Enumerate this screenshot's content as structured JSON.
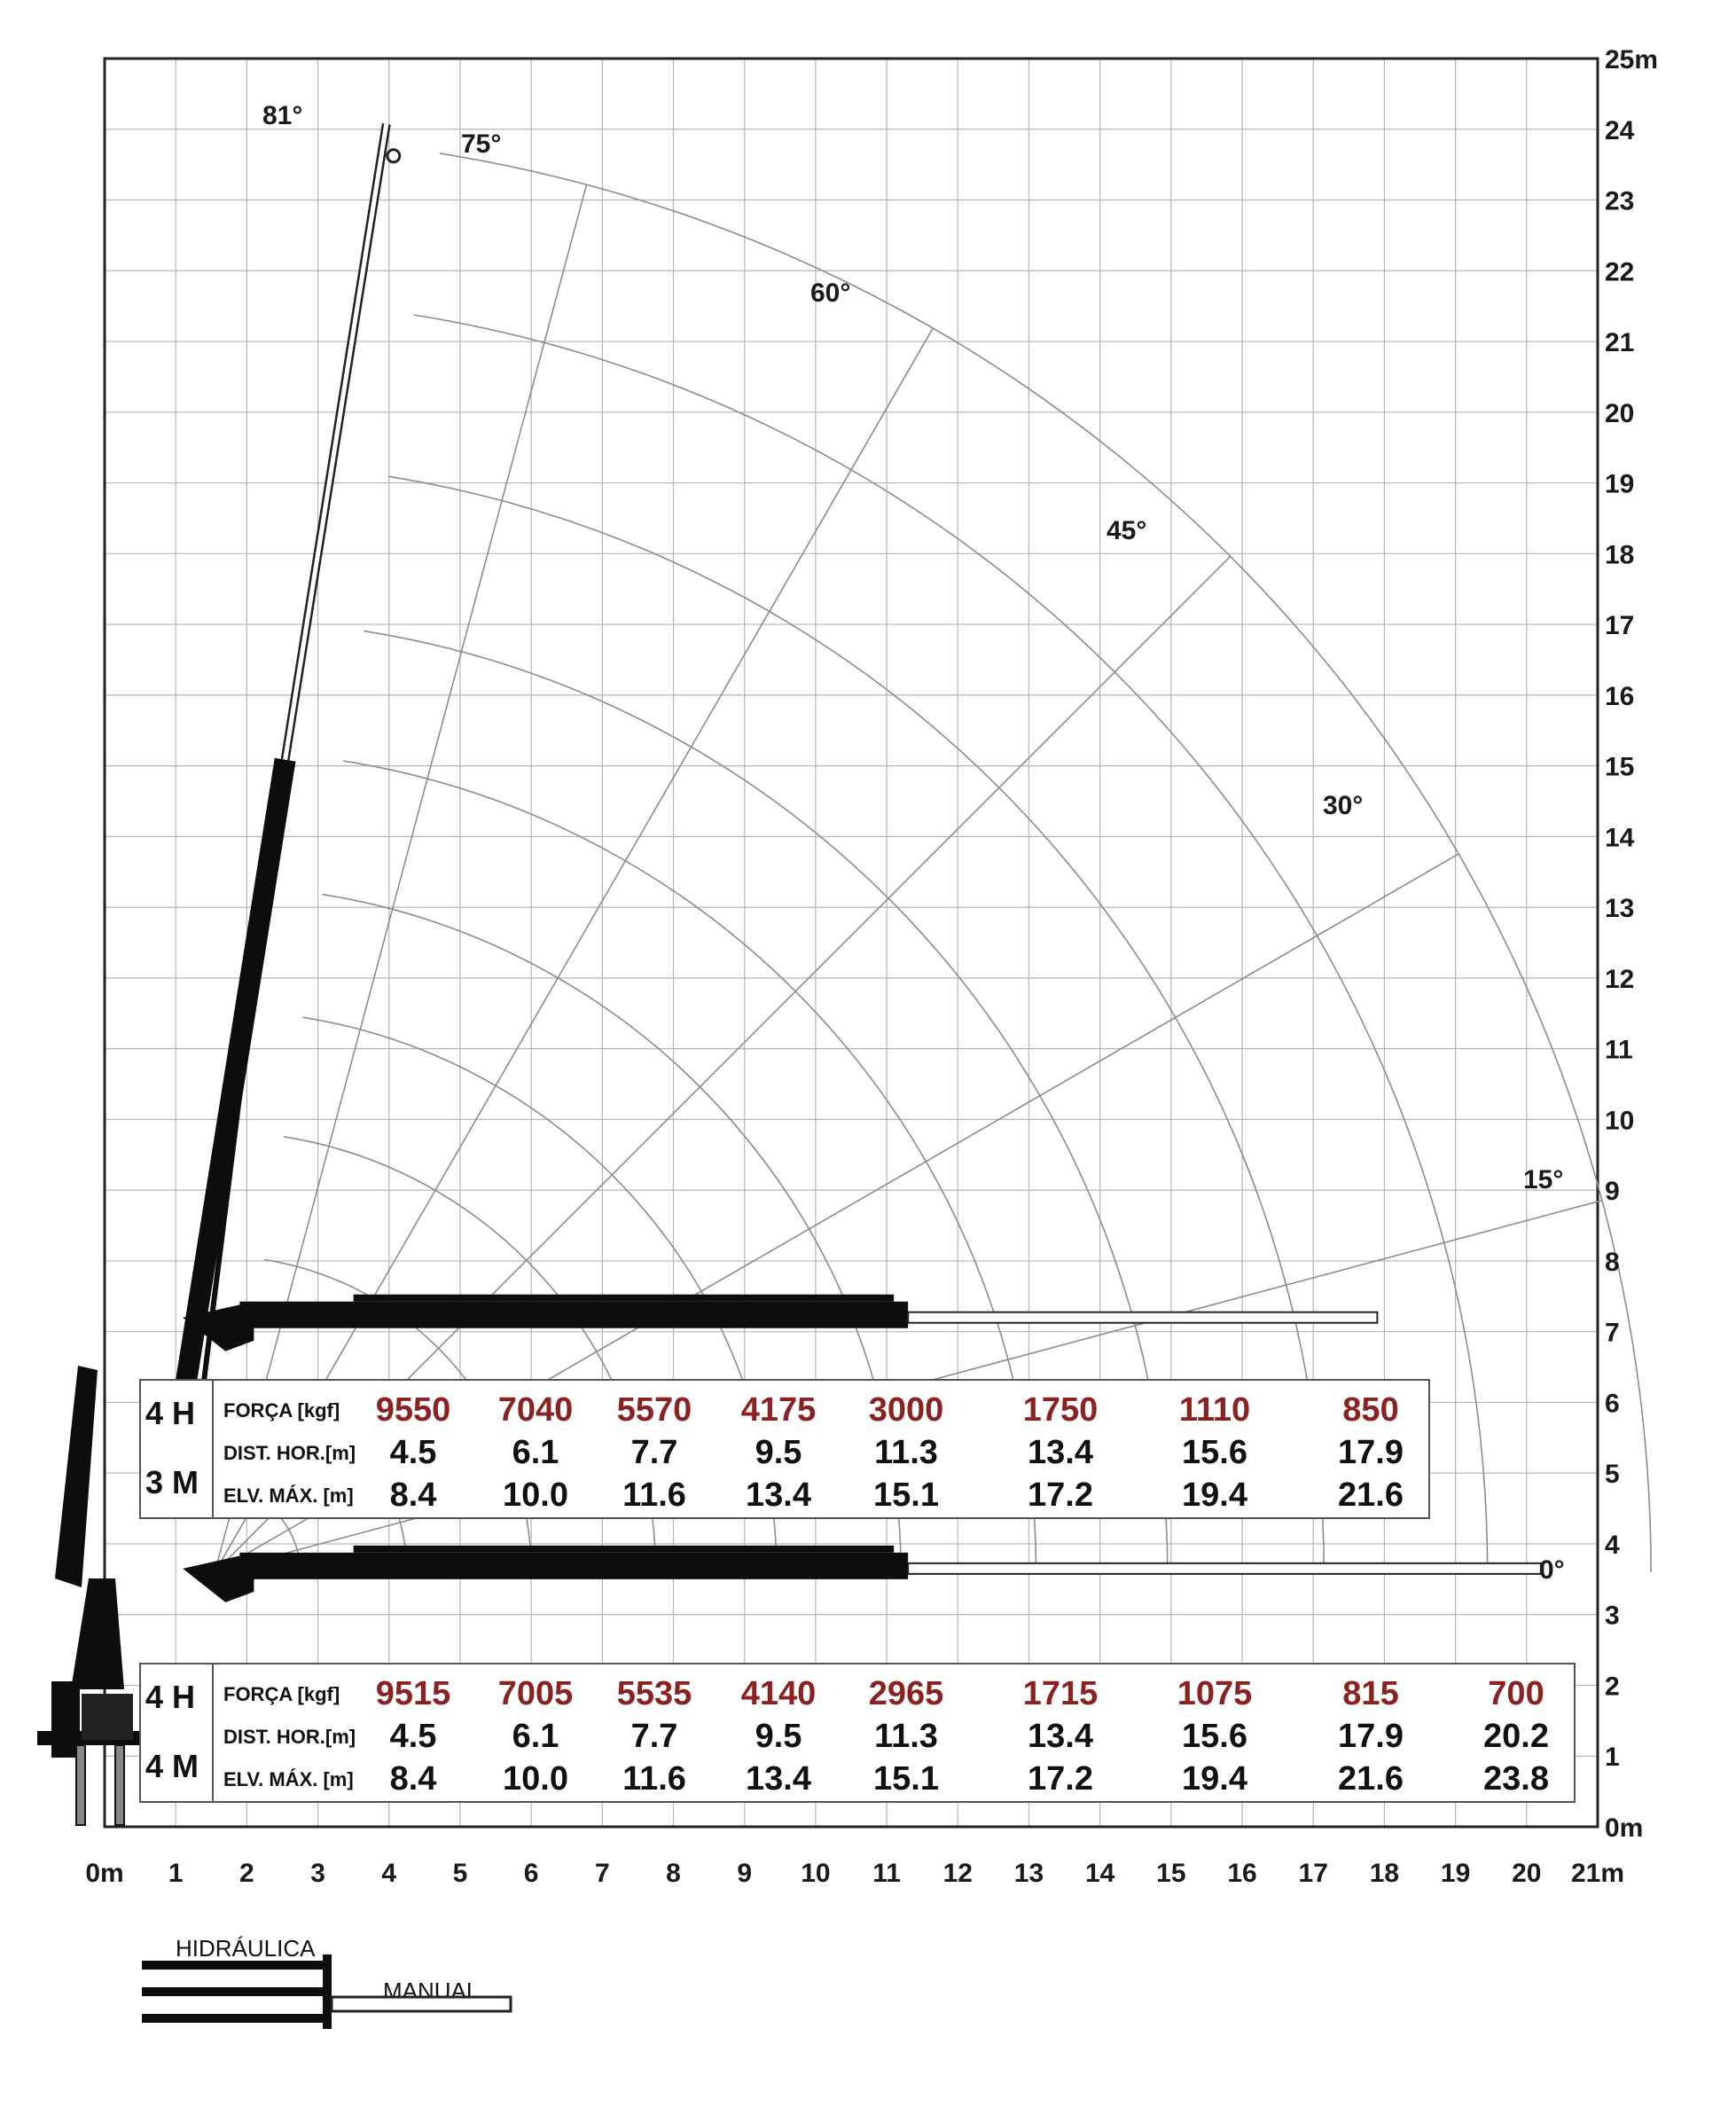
{
  "chart_data": {
    "type": "diagram",
    "x_axis": {
      "ticks": [
        "0m",
        "1",
        "2",
        "3",
        "4",
        "5",
        "6",
        "7",
        "8",
        "9",
        "10",
        "11",
        "12",
        "13",
        "14",
        "15",
        "16",
        "17",
        "18",
        "19",
        "20",
        "21m"
      ],
      "range": [
        0,
        21
      ]
    },
    "y_axis": {
      "ticks": [
        "0m",
        "1",
        "2",
        "3",
        "4",
        "5",
        "6",
        "7",
        "8",
        "9",
        "10",
        "11",
        "12",
        "13",
        "14",
        "15",
        "16",
        "17",
        "18",
        "19",
        "20",
        "21",
        "22",
        "23",
        "24",
        "25m"
      ],
      "range": [
        0,
        25
      ]
    },
    "pivot": {
      "x": 1.55,
      "y": 3.6
    },
    "arc_radii": [
      1.2,
      2.7,
      4.45,
      6.2,
      7.9,
      9.65,
      11.55,
      13.4,
      15.6,
      17.9,
      20.2
    ],
    "angle_rays": [
      {
        "deg": 15,
        "label": "15°"
      },
      {
        "deg": 30,
        "label": "30°"
      },
      {
        "deg": 45,
        "label": "45°"
      },
      {
        "deg": 60,
        "label": "60°"
      },
      {
        "deg": 75,
        "label": "75°"
      },
      {
        "deg": 81,
        "label": "81°"
      },
      {
        "deg": 0,
        "label": "0°"
      }
    ],
    "tables": [
      {
        "config_top": "4 H",
        "config_bottom": "3 M",
        "rows": [
          {
            "label": "FORÇA [kgf]",
            "values": [
              "9550",
              "7040",
              "5570",
              "4175",
              "3000",
              "1750",
              "1110",
              "850"
            ]
          },
          {
            "label": "DIST. HOR.[m]",
            "values": [
              "4.5",
              "6.1",
              "7.7",
              "9.5",
              "11.3",
              "13.4",
              "15.6",
              "17.9"
            ]
          },
          {
            "label": "ELV. MÁX. [m]",
            "values": [
              "8.4",
              "10.0",
              "11.6",
              "13.4",
              "15.1",
              "17.2",
              "19.4",
              "21.6"
            ]
          }
        ]
      },
      {
        "config_top": "4 H",
        "config_bottom": "4 M",
        "rows": [
          {
            "label": "FORÇA [kgf]",
            "values": [
              "9515",
              "7005",
              "5535",
              "4140",
              "2965",
              "1715",
              "1075",
              "815",
              "700"
            ]
          },
          {
            "label": "DIST. HOR.[m]",
            "values": [
              "4.5",
              "6.1",
              "7.7",
              "9.5",
              "11.3",
              "13.4",
              "15.6",
              "17.9",
              "20.2"
            ]
          },
          {
            "label": "ELV. MÁX. [m]",
            "values": [
              "8.4",
              "10.0",
              "11.6",
              "13.4",
              "15.1",
              "17.2",
              "19.4",
              "21.6",
              "23.8"
            ]
          }
        ]
      }
    ],
    "legend": {
      "hydraulic": "HIDRÁULICA",
      "manual": "MANUAL"
    }
  },
  "colors": {
    "force": "#8b2222",
    "text": "#111111",
    "grid": "#b4b4b4",
    "arc": "#8c8c8c",
    "boom": "#0d0d0d"
  }
}
